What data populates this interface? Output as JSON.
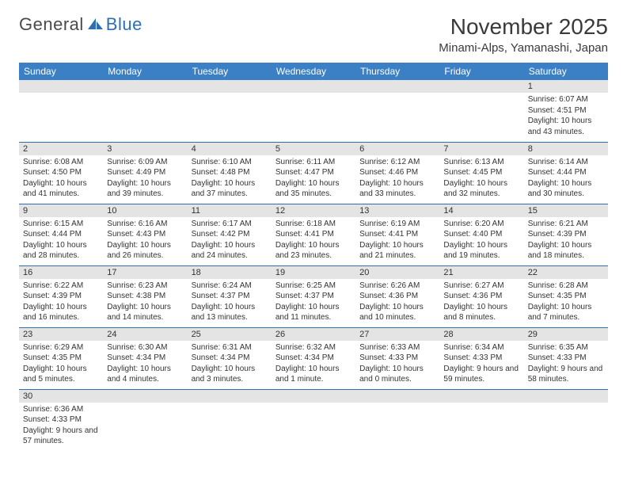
{
  "logo": {
    "text1": "General",
    "text2": "Blue"
  },
  "title": "November 2025",
  "location": "Minami-Alps, Yamanashi, Japan",
  "colors": {
    "header_bg": "#3b7fc4",
    "header_fg": "#ffffff",
    "row_border": "#2e6fb4",
    "daynum_bg": "#e4e4e4",
    "text": "#333333",
    "logo_gray": "#4a4a4a",
    "logo_blue": "#2e6fb4",
    "page_bg": "#ffffff"
  },
  "fonts": {
    "title_size": 28,
    "location_size": 15,
    "logo_size": 22,
    "dayheader_size": 12,
    "daynum_size": 11,
    "body_size": 10
  },
  "day_headers": [
    "Sunday",
    "Monday",
    "Tuesday",
    "Wednesday",
    "Thursday",
    "Friday",
    "Saturday"
  ],
  "weeks": [
    [
      {
        "n": "",
        "lines": []
      },
      {
        "n": "",
        "lines": []
      },
      {
        "n": "",
        "lines": []
      },
      {
        "n": "",
        "lines": []
      },
      {
        "n": "",
        "lines": []
      },
      {
        "n": "",
        "lines": []
      },
      {
        "n": "1",
        "lines": [
          "Sunrise: 6:07 AM",
          "Sunset: 4:51 PM",
          "Daylight: 10 hours and 43 minutes."
        ]
      }
    ],
    [
      {
        "n": "2",
        "lines": [
          "Sunrise: 6:08 AM",
          "Sunset: 4:50 PM",
          "Daylight: 10 hours and 41 minutes."
        ]
      },
      {
        "n": "3",
        "lines": [
          "Sunrise: 6:09 AM",
          "Sunset: 4:49 PM",
          "Daylight: 10 hours and 39 minutes."
        ]
      },
      {
        "n": "4",
        "lines": [
          "Sunrise: 6:10 AM",
          "Sunset: 4:48 PM",
          "Daylight: 10 hours and 37 minutes."
        ]
      },
      {
        "n": "5",
        "lines": [
          "Sunrise: 6:11 AM",
          "Sunset: 4:47 PM",
          "Daylight: 10 hours and 35 minutes."
        ]
      },
      {
        "n": "6",
        "lines": [
          "Sunrise: 6:12 AM",
          "Sunset: 4:46 PM",
          "Daylight: 10 hours and 33 minutes."
        ]
      },
      {
        "n": "7",
        "lines": [
          "Sunrise: 6:13 AM",
          "Sunset: 4:45 PM",
          "Daylight: 10 hours and 32 minutes."
        ]
      },
      {
        "n": "8",
        "lines": [
          "Sunrise: 6:14 AM",
          "Sunset: 4:44 PM",
          "Daylight: 10 hours and 30 minutes."
        ]
      }
    ],
    [
      {
        "n": "9",
        "lines": [
          "Sunrise: 6:15 AM",
          "Sunset: 4:44 PM",
          "Daylight: 10 hours and 28 minutes."
        ]
      },
      {
        "n": "10",
        "lines": [
          "Sunrise: 6:16 AM",
          "Sunset: 4:43 PM",
          "Daylight: 10 hours and 26 minutes."
        ]
      },
      {
        "n": "11",
        "lines": [
          "Sunrise: 6:17 AM",
          "Sunset: 4:42 PM",
          "Daylight: 10 hours and 24 minutes."
        ]
      },
      {
        "n": "12",
        "lines": [
          "Sunrise: 6:18 AM",
          "Sunset: 4:41 PM",
          "Daylight: 10 hours and 23 minutes."
        ]
      },
      {
        "n": "13",
        "lines": [
          "Sunrise: 6:19 AM",
          "Sunset: 4:41 PM",
          "Daylight: 10 hours and 21 minutes."
        ]
      },
      {
        "n": "14",
        "lines": [
          "Sunrise: 6:20 AM",
          "Sunset: 4:40 PM",
          "Daylight: 10 hours and 19 minutes."
        ]
      },
      {
        "n": "15",
        "lines": [
          "Sunrise: 6:21 AM",
          "Sunset: 4:39 PM",
          "Daylight: 10 hours and 18 minutes."
        ]
      }
    ],
    [
      {
        "n": "16",
        "lines": [
          "Sunrise: 6:22 AM",
          "Sunset: 4:39 PM",
          "Daylight: 10 hours and 16 minutes."
        ]
      },
      {
        "n": "17",
        "lines": [
          "Sunrise: 6:23 AM",
          "Sunset: 4:38 PM",
          "Daylight: 10 hours and 14 minutes."
        ]
      },
      {
        "n": "18",
        "lines": [
          "Sunrise: 6:24 AM",
          "Sunset: 4:37 PM",
          "Daylight: 10 hours and 13 minutes."
        ]
      },
      {
        "n": "19",
        "lines": [
          "Sunrise: 6:25 AM",
          "Sunset: 4:37 PM",
          "Daylight: 10 hours and 11 minutes."
        ]
      },
      {
        "n": "20",
        "lines": [
          "Sunrise: 6:26 AM",
          "Sunset: 4:36 PM",
          "Daylight: 10 hours and 10 minutes."
        ]
      },
      {
        "n": "21",
        "lines": [
          "Sunrise: 6:27 AM",
          "Sunset: 4:36 PM",
          "Daylight: 10 hours and 8 minutes."
        ]
      },
      {
        "n": "22",
        "lines": [
          "Sunrise: 6:28 AM",
          "Sunset: 4:35 PM",
          "Daylight: 10 hours and 7 minutes."
        ]
      }
    ],
    [
      {
        "n": "23",
        "lines": [
          "Sunrise: 6:29 AM",
          "Sunset: 4:35 PM",
          "Daylight: 10 hours and 5 minutes."
        ]
      },
      {
        "n": "24",
        "lines": [
          "Sunrise: 6:30 AM",
          "Sunset: 4:34 PM",
          "Daylight: 10 hours and 4 minutes."
        ]
      },
      {
        "n": "25",
        "lines": [
          "Sunrise: 6:31 AM",
          "Sunset: 4:34 PM",
          "Daylight: 10 hours and 3 minutes."
        ]
      },
      {
        "n": "26",
        "lines": [
          "Sunrise: 6:32 AM",
          "Sunset: 4:34 PM",
          "Daylight: 10 hours and 1 minute."
        ]
      },
      {
        "n": "27",
        "lines": [
          "Sunrise: 6:33 AM",
          "Sunset: 4:33 PM",
          "Daylight: 10 hours and 0 minutes."
        ]
      },
      {
        "n": "28",
        "lines": [
          "Sunrise: 6:34 AM",
          "Sunset: 4:33 PM",
          "Daylight: 9 hours and 59 minutes."
        ]
      },
      {
        "n": "29",
        "lines": [
          "Sunrise: 6:35 AM",
          "Sunset: 4:33 PM",
          "Daylight: 9 hours and 58 minutes."
        ]
      }
    ],
    [
      {
        "n": "30",
        "lines": [
          "Sunrise: 6:36 AM",
          "Sunset: 4:33 PM",
          "Daylight: 9 hours and 57 minutes."
        ]
      },
      {
        "n": "",
        "lines": []
      },
      {
        "n": "",
        "lines": []
      },
      {
        "n": "",
        "lines": []
      },
      {
        "n": "",
        "lines": []
      },
      {
        "n": "",
        "lines": []
      },
      {
        "n": "",
        "lines": []
      }
    ]
  ]
}
